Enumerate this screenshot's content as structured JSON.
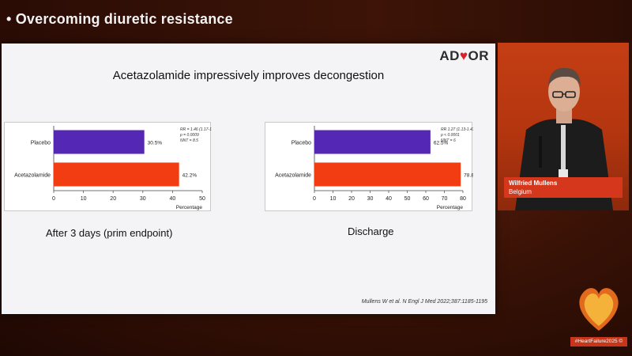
{
  "header": {
    "title": "• Overcoming diuretic resistance"
  },
  "slide": {
    "brand": {
      "pre": "AD",
      "heart": "♥",
      "post": "OR"
    },
    "headline": "Acetazolamide impressively improves decongestion",
    "captions": [
      "After 3 days (prim endpoint)",
      "Discharge"
    ],
    "citation": "Mullens W et al. N Engl J Med 2022;387:1185-1195"
  },
  "speaker": {
    "name": "Wilfried Mullens",
    "country": "Belgium"
  },
  "event": {
    "tag": "#HeartFailure2025 ©"
  },
  "colors": {
    "placebo": "#5527b5",
    "acetazolamide": "#f23d12"
  },
  "chart_data": [
    {
      "type": "bar",
      "orientation": "horizontal",
      "categories": [
        "Placebo",
        "Acetazolamide"
      ],
      "values": [
        30.5,
        42.2
      ],
      "data_labels": [
        "30.5%",
        "42.2%"
      ],
      "xlabel": "Percentage",
      "xlim": [
        0,
        50
      ],
      "xticks": [
        0,
        10,
        20,
        30,
        40,
        50
      ],
      "stats": [
        "RR = 1.46 (1.17-1.82)",
        "p = 0.0009",
        "NNT = 8.5"
      ],
      "caption": "After 3 days (prim endpoint)"
    },
    {
      "type": "bar",
      "orientation": "horizontal",
      "categories": [
        "Placebo",
        "Acetazolamide"
      ],
      "values": [
        62.5,
        78.8
      ],
      "data_labels": [
        "62.5%",
        "78.8%"
      ],
      "xlabel": "Percentage",
      "xlim": [
        0,
        80
      ],
      "xticks": [
        0,
        10,
        20,
        30,
        40,
        50,
        60,
        70,
        80
      ],
      "stats": [
        "RR 1.27 (1.13-1.43)",
        "p < 0.0001",
        "NNT = 6"
      ],
      "caption": "Discharge"
    }
  ]
}
